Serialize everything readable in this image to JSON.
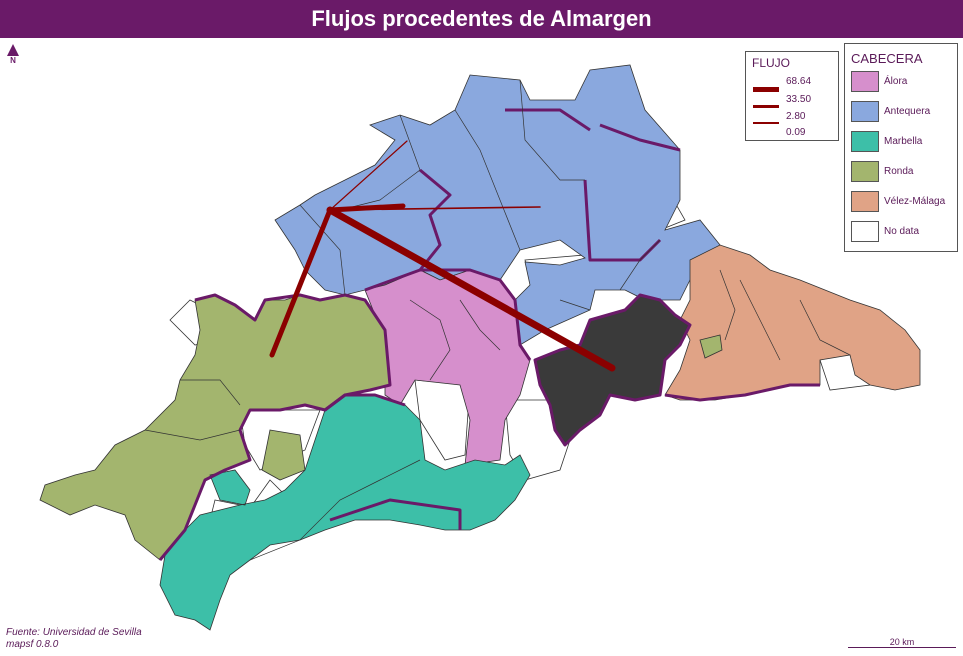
{
  "title": "Flujos procedentes de Almargen",
  "north_label": "N",
  "colors": {
    "title_bg": "#6a1a68",
    "flow": "#8b0000",
    "boundary": "#6a1a68",
    "selected": "#3a3a3a",
    "Álora": "#d68fcc",
    "Antequera": "#8aa8de",
    "Marbella": "#3dbfa8",
    "Ronda": "#a3b56e",
    "Vélez-Málaga": "#e0a386",
    "No data": "#ffffff"
  },
  "flow_legend": {
    "title": "FLUJO",
    "values": [
      "68.64",
      "33.50",
      "2.80",
      "0.09"
    ]
  },
  "cabecera_legend": {
    "title": "CABECERA",
    "items": [
      {
        "label": "Álora",
        "color": "#d68fcc"
      },
      {
        "label": "Antequera",
        "color": "#8aa8de"
      },
      {
        "label": "Marbella",
        "color": "#3dbfa8"
      },
      {
        "label": "Ronda",
        "color": "#a3b56e"
      },
      {
        "label": "Vélez-Málaga",
        "color": "#e0a386"
      },
      {
        "label": "No data",
        "color": "#ffffff"
      }
    ]
  },
  "source": {
    "line1": "Fuente: Universidad de Sevilla",
    "line2": "mapsf 0.8.0"
  },
  "scale_label": "20 km"
}
